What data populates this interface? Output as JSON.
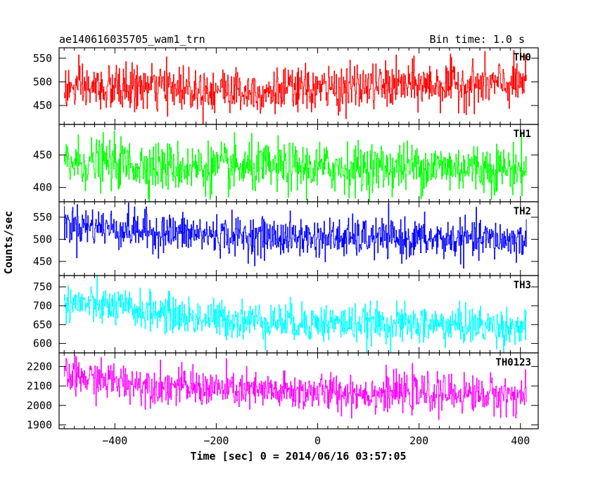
{
  "chart_data": {
    "type": "line",
    "title": "ae140616035705_wam1_trn",
    "bin_time_label": "Bin time: 1.0 s",
    "xlabel": "Time [sec] 0 = 2014/06/16 03:57:05",
    "ylabel": "Counts/sec",
    "xlim": [
      -510,
      435
    ],
    "xticks": [
      -400,
      -200,
      0,
      200,
      400
    ],
    "x_start": -500,
    "x_end": 412,
    "grid": false,
    "legend": "none",
    "panels": [
      {
        "name": "TH0",
        "color": "#ff0000",
        "ylim": [
          410,
          572
        ],
        "yticks": [
          450,
          500,
          550
        ],
        "trend": [
          [
            -500,
            485
          ],
          [
            -400,
            486
          ],
          [
            -300,
            489
          ],
          [
            -200,
            484
          ],
          [
            -100,
            480
          ],
          [
            0,
            484
          ],
          [
            100,
            490
          ],
          [
            200,
            493
          ],
          [
            300,
            494
          ],
          [
            412,
            495
          ]
        ],
        "noise_sd": 24
      },
      {
        "name": "TH1",
        "color": "#00ff00",
        "ylim": [
          378,
          497
        ],
        "yticks": [
          400,
          450
        ],
        "trend": [
          [
            -500,
            438
          ],
          [
            -400,
            437
          ],
          [
            -300,
            432
          ],
          [
            -200,
            430
          ],
          [
            -100,
            430
          ],
          [
            0,
            430
          ],
          [
            100,
            430
          ],
          [
            200,
            432
          ],
          [
            300,
            431
          ],
          [
            412,
            428
          ]
        ],
        "noise_sd": 19
      },
      {
        "name": "TH2",
        "color": "#0000ff",
        "ylim": [
          418,
          585
        ],
        "yticks": [
          450,
          500,
          550
        ],
        "trend": [
          [
            -500,
            535
          ],
          [
            -400,
            525
          ],
          [
            -300,
            515
          ],
          [
            -200,
            510
          ],
          [
            -100,
            505
          ],
          [
            0,
            503
          ],
          [
            100,
            503
          ],
          [
            200,
            500
          ],
          [
            300,
            500
          ],
          [
            412,
            498
          ]
        ],
        "noise_sd": 22
      },
      {
        "name": "TH3",
        "color": "#00ffff",
        "ylim": [
          575,
          780
        ],
        "yticks": [
          600,
          650,
          700,
          750
        ],
        "trend": [
          [
            -500,
            710
          ],
          [
            -400,
            695
          ],
          [
            -300,
            680
          ],
          [
            -250,
            668
          ],
          [
            -200,
            665
          ],
          [
            -100,
            660
          ],
          [
            0,
            655
          ],
          [
            100,
            652
          ],
          [
            200,
            650
          ],
          [
            300,
            648
          ],
          [
            412,
            642
          ]
        ],
        "noise_sd": 25
      },
      {
        "name": "TH0123",
        "color": "#ff00ff",
        "ylim": [
          1880,
          2270
        ],
        "yticks": [
          1900,
          2000,
          2100,
          2200
        ],
        "trend": [
          [
            -500,
            2150
          ],
          [
            -400,
            2125
          ],
          [
            -300,
            2100
          ],
          [
            -200,
            2085
          ],
          [
            -100,
            2070
          ],
          [
            0,
            2068
          ],
          [
            100,
            2065
          ],
          [
            200,
            2063
          ],
          [
            300,
            2060
          ],
          [
            412,
            2050
          ]
        ],
        "noise_sd": 48
      }
    ]
  }
}
